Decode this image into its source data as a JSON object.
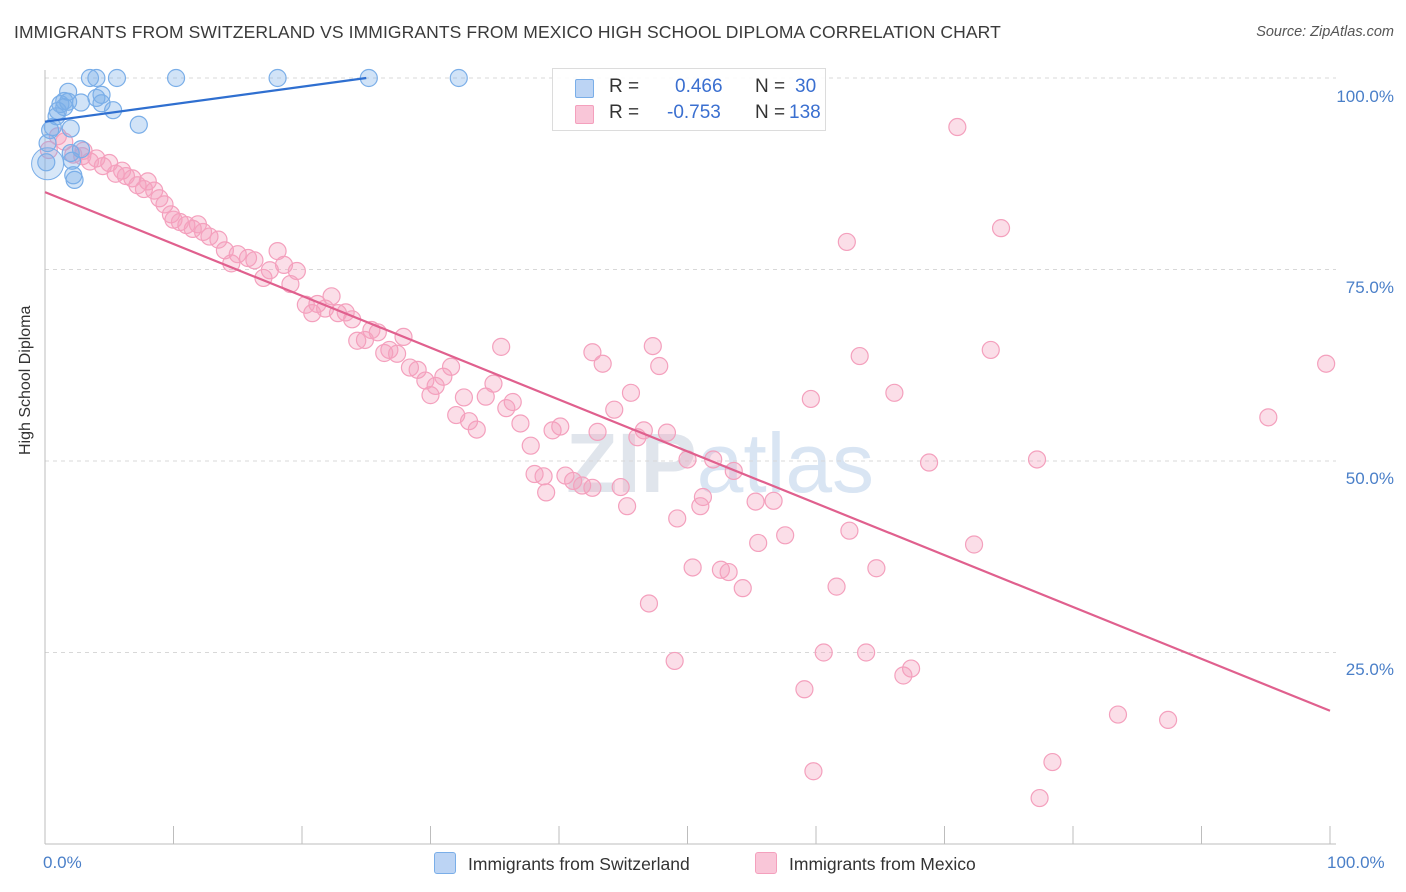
{
  "title": "IMMIGRANTS FROM SWITZERLAND VS IMMIGRANTS FROM MEXICO HIGH SCHOOL DIPLOMA CORRELATION CHART",
  "source": "Source: ZipAtlas.com",
  "watermark": "ZIPatlas",
  "legend_box": {
    "rows": [
      {
        "r_label": "R =",
        "r_value": "0.466",
        "n_label": "N =",
        "n_value": "30"
      },
      {
        "r_label": "R =",
        "r_value": "-0.753",
        "n_label": "N =",
        "n_value": "138"
      }
    ]
  },
  "bottom_legend": [
    "Immigrants from Switzerland",
    "Immigrants from Mexico"
  ],
  "colors": {
    "switzerland": "#7aaee8",
    "switzerland_line": "#2f6fd0",
    "mexico": "#f4a0bd",
    "mexico_line": "#e0608e",
    "tick_text": "#4a7fc8"
  },
  "chart_data": {
    "type": "scatter",
    "title": "IMMIGRANTS FROM SWITZERLAND VS IMMIGRANTS FROM MEXICO HIGH SCHOOL DIPLOMA CORRELATION CHART",
    "xlabel": "",
    "ylabel": "High School Diploma",
    "xlim": [
      0,
      100
    ],
    "ylim": [
      0,
      100
    ],
    "x_tick_labels": [
      "0.0%",
      "100.0%"
    ],
    "y_tick_labels": [
      "100.0%",
      "75.0%",
      "50.0%",
      "25.0%"
    ],
    "y_ticks": [
      100,
      75,
      50,
      25
    ],
    "grid": true,
    "legend_position": "bottom",
    "series": [
      {
        "name": "Immigrants from Switzerland",
        "R": 0.466,
        "N": 30,
        "trend": [
          [
            0,
            94.3
          ],
          [
            25,
            100
          ]
        ],
        "points": [
          [
            0.2,
            91.5
          ],
          [
            0.4,
            93.2
          ],
          [
            0.6,
            93.6
          ],
          [
            0.9,
            95.0
          ],
          [
            1.0,
            95.7
          ],
          [
            1.2,
            96.6
          ],
          [
            1.5,
            96.2
          ],
          [
            1.5,
            97.0
          ],
          [
            1.8,
            96.9
          ],
          [
            1.8,
            98.2
          ],
          [
            2.0,
            90.2
          ],
          [
            2.0,
            93.4
          ],
          [
            2.1,
            89.2
          ],
          [
            2.2,
            87.3
          ],
          [
            2.3,
            86.7
          ],
          [
            2.8,
            90.7
          ],
          [
            2.8,
            96.8
          ],
          [
            3.5,
            100
          ],
          [
            4.0,
            100
          ],
          [
            4.0,
            97.4
          ],
          [
            4.4,
            96.7
          ],
          [
            4.4,
            97.8
          ],
          [
            5.3,
            95.8
          ],
          [
            5.6,
            100
          ],
          [
            7.3,
            93.9
          ],
          [
            10.2,
            100
          ],
          [
            18.1,
            100
          ],
          [
            25.2,
            100
          ],
          [
            32.2,
            100
          ],
          [
            0.1,
            89.0
          ]
        ]
      },
      {
        "name": "Immigrants from Mexico",
        "R": -0.753,
        "N": 138,
        "trend": [
          [
            0,
            85.1
          ],
          [
            100,
            17.4
          ]
        ],
        "points": [
          [
            0.3,
            90.6
          ],
          [
            1.0,
            92.4
          ],
          [
            1.5,
            91.7
          ],
          [
            2.2,
            90.0
          ],
          [
            2.9,
            89.8
          ],
          [
            3.0,
            90.5
          ],
          [
            3.5,
            89.1
          ],
          [
            4.0,
            89.5
          ],
          [
            4.5,
            88.5
          ],
          [
            5.0,
            88.9
          ],
          [
            5.5,
            87.5
          ],
          [
            6.0,
            87.9
          ],
          [
            6.3,
            87.2
          ],
          [
            6.8,
            86.9
          ],
          [
            7.2,
            86.0
          ],
          [
            7.7,
            85.5
          ],
          [
            8.0,
            86.5
          ],
          [
            8.5,
            85.3
          ],
          [
            8.9,
            84.3
          ],
          [
            9.3,
            83.5
          ],
          [
            9.8,
            82.2
          ],
          [
            10.0,
            81.5
          ],
          [
            10.5,
            81.2
          ],
          [
            11.0,
            80.8
          ],
          [
            11.5,
            80.3
          ],
          [
            11.9,
            80.9
          ],
          [
            12.3,
            79.9
          ],
          [
            12.8,
            79.3
          ],
          [
            13.5,
            78.9
          ],
          [
            14.0,
            77.5
          ],
          [
            14.5,
            75.8
          ],
          [
            15.0,
            77.0
          ],
          [
            15.8,
            76.5
          ],
          [
            16.3,
            76.2
          ],
          [
            17.0,
            73.9
          ],
          [
            17.5,
            74.9
          ],
          [
            18.1,
            77.4
          ],
          [
            18.6,
            75.6
          ],
          [
            19.1,
            73.1
          ],
          [
            19.6,
            74.8
          ],
          [
            20.3,
            70.4
          ],
          [
            20.8,
            69.3
          ],
          [
            21.2,
            70.5
          ],
          [
            21.8,
            69.9
          ],
          [
            22.3,
            71.5
          ],
          [
            22.8,
            69.3
          ],
          [
            23.4,
            69.4
          ],
          [
            23.9,
            68.5
          ],
          [
            24.3,
            65.7
          ],
          [
            24.9,
            65.8
          ],
          [
            25.4,
            67.1
          ],
          [
            25.9,
            66.8
          ],
          [
            26.4,
            64.1
          ],
          [
            26.8,
            64.5
          ],
          [
            27.4,
            64.0
          ],
          [
            27.9,
            66.2
          ],
          [
            28.4,
            62.2
          ],
          [
            29.0,
            61.9
          ],
          [
            29.6,
            60.5
          ],
          [
            30.0,
            58.6
          ],
          [
            30.4,
            59.8
          ],
          [
            31.0,
            61.0
          ],
          [
            31.6,
            62.3
          ],
          [
            32.0,
            56.0
          ],
          [
            32.6,
            58.3
          ],
          [
            33.0,
            55.2
          ],
          [
            33.6,
            54.1
          ],
          [
            34.3,
            58.4
          ],
          [
            34.9,
            60.1
          ],
          [
            35.5,
            64.9
          ],
          [
            35.9,
            56.9
          ],
          [
            36.4,
            57.7
          ],
          [
            37.0,
            54.9
          ],
          [
            37.8,
            52.0
          ],
          [
            38.1,
            48.3
          ],
          [
            38.8,
            48.0
          ],
          [
            39.0,
            45.9
          ],
          [
            39.5,
            54.0
          ],
          [
            40.1,
            54.5
          ],
          [
            40.5,
            48.1
          ],
          [
            41.1,
            47.4
          ],
          [
            41.8,
            46.8
          ],
          [
            42.6,
            46.5
          ],
          [
            42.6,
            64.2
          ],
          [
            43.0,
            53.8
          ],
          [
            43.4,
            62.7
          ],
          [
            44.3,
            56.7
          ],
          [
            44.8,
            46.6
          ],
          [
            45.3,
            44.1
          ],
          [
            45.6,
            58.9
          ],
          [
            46.1,
            53.1
          ],
          [
            46.6,
            54.0
          ],
          [
            47.0,
            31.4
          ],
          [
            47.3,
            65.0
          ],
          [
            47.8,
            62.4
          ],
          [
            48.4,
            53.7
          ],
          [
            49.0,
            23.9
          ],
          [
            49.2,
            42.5
          ],
          [
            50.0,
            50.2
          ],
          [
            50.4,
            36.1
          ],
          [
            51.0,
            44.1
          ],
          [
            51.2,
            45.3
          ],
          [
            52.0,
            50.2
          ],
          [
            52.6,
            35.8
          ],
          [
            53.2,
            35.5
          ],
          [
            53.6,
            48.7
          ],
          [
            54.3,
            33.4
          ],
          [
            55.3,
            44.7
          ],
          [
            55.5,
            39.3
          ],
          [
            56.7,
            44.8
          ],
          [
            57.6,
            40.3
          ],
          [
            59.1,
            20.2
          ],
          [
            59.6,
            58.1
          ],
          [
            59.8,
            9.5
          ],
          [
            60.6,
            25.0
          ],
          [
            61.6,
            33.6
          ],
          [
            62.4,
            78.6
          ],
          [
            62.6,
            40.9
          ],
          [
            63.4,
            63.7
          ],
          [
            63.9,
            25.0
          ],
          [
            64.7,
            36.0
          ],
          [
            66.1,
            58.9
          ],
          [
            66.8,
            22.0
          ],
          [
            67.4,
            22.9
          ],
          [
            68.8,
            49.8
          ],
          [
            71.0,
            93.6
          ],
          [
            72.3,
            39.1
          ],
          [
            73.6,
            64.5
          ],
          [
            74.4,
            80.4
          ],
          [
            77.2,
            50.2
          ],
          [
            77.4,
            6.0
          ],
          [
            78.4,
            10.7
          ],
          [
            83.5,
            16.9
          ],
          [
            87.4,
            16.2
          ],
          [
            95.2,
            55.7
          ],
          [
            99.7,
            62.7
          ]
        ]
      }
    ]
  }
}
